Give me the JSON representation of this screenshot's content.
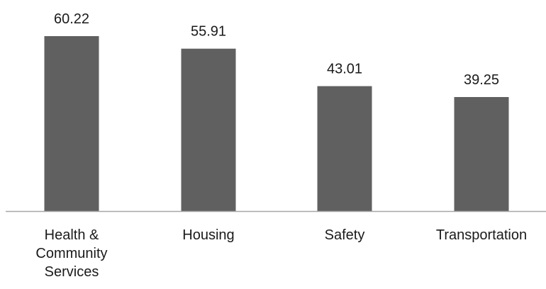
{
  "chart_data": {
    "type": "bar",
    "categories": [
      [
        "Health &",
        "Community",
        "Services"
      ],
      [
        "Housing"
      ],
      [
        "Safety"
      ],
      [
        "Transportation"
      ]
    ],
    "values": [
      60.22,
      55.91,
      43.01,
      39.25
    ],
    "data_labels": [
      "60.22",
      "55.91",
      "43.01",
      "39.25"
    ],
    "title": "",
    "xlabel": "",
    "ylabel": "",
    "ylim": [
      0,
      65
    ],
    "grid": false,
    "legend": "none",
    "bar_color": "#606060",
    "axis_color": "#a6a6a6"
  }
}
